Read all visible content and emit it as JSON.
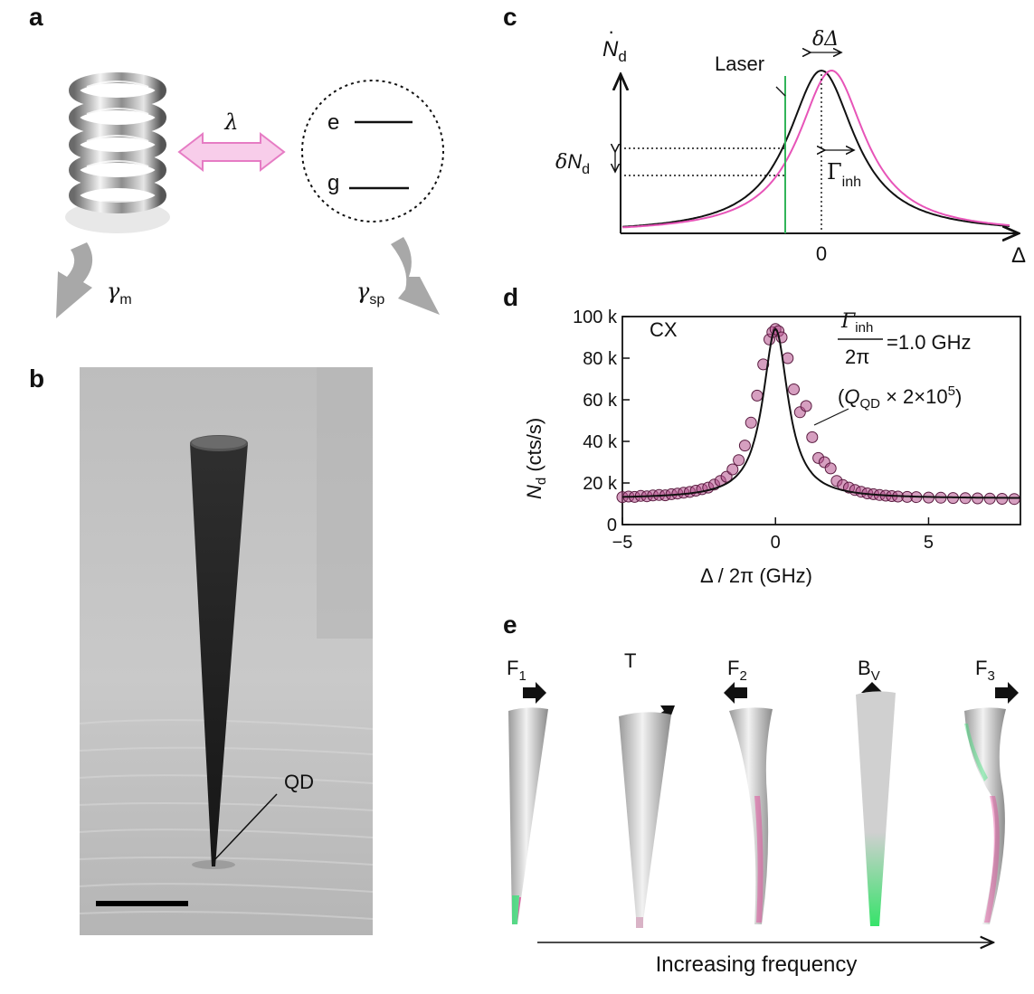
{
  "panels": {
    "a": {
      "label": "a",
      "coupling_symbol": "λ",
      "states": [
        "e",
        "g"
      ],
      "gamma_m_base": "γ",
      "gamma_m_sub": "m",
      "gamma_sp_base": "γ",
      "gamma_sp_sub": "sp"
    },
    "b": {
      "label": "b",
      "qd_label": "QD"
    },
    "c": {
      "label": "c",
      "ylabel": "N",
      "ylabel_sub": "d",
      "laser_label": "Laser",
      "shift_label": "δΔ",
      "dN_prefix": "δ",
      "dN_base": "N",
      "dN_sub": "d",
      "width_base": "Γ",
      "width_sub": "inh",
      "x_zero": "0",
      "x_label": "Δ"
    },
    "d": {
      "label": "d",
      "annotation_cx": "CX",
      "gamma_num_base": "Γ",
      "gamma_num_sub": "inh",
      "gamma_den": "2π",
      "gamma_value": "=1.0 GHz",
      "q_open": "(",
      "q_base": "Q",
      "q_sub": "QD",
      "q_mid": " × 2×10",
      "q_exp": "5",
      "q_close": ")",
      "xlabel": "Δ / 2π (GHz)",
      "ylabel_base": "N",
      "ylabel_sub": "d",
      "ylabel_unit": " (cts/s)"
    },
    "e": {
      "label": "e",
      "modes": [
        {
          "base": "F",
          "sub": "1",
          "arrow": "right"
        },
        {
          "base": "T",
          "sub": "",
          "arrow": "curved"
        },
        {
          "base": "F",
          "sub": "2",
          "arrow": "left"
        },
        {
          "base": "B",
          "sub": "V",
          "arrow": "up"
        },
        {
          "base": "F",
          "sub": "3",
          "arrow": "right"
        }
      ],
      "caption": "Increasing frequency"
    }
  },
  "chart_data": [
    {
      "type": "line",
      "panel": "c",
      "series": [
        {
          "color": "#111111",
          "center": 0,
          "fwhm": 1
        },
        {
          "color": "#e754b8",
          "center": 0.25,
          "fwhm": 1
        }
      ],
      "vline_color": "#32b45a",
      "x_ticks": [
        "0"
      ],
      "xlabel": "Δ",
      "ylabel": "Ṅd"
    },
    {
      "type": "scatter",
      "panel": "d",
      "xlim": [
        -5,
        8
      ],
      "ylim": [
        0,
        100000
      ],
      "x_ticks": [
        -5,
        0,
        5
      ],
      "x_tick_labels": [
        "−5",
        "0",
        "5"
      ],
      "y_ticks": [
        0,
        20000,
        40000,
        60000,
        80000,
        100000
      ],
      "y_tick_labels": [
        "0",
        "20 k",
        "40 k",
        "60 k",
        "80 k",
        "100 k"
      ],
      "fit": {
        "type": "lorentzian",
        "center": 0,
        "fwhm": 1.0,
        "peak": 94000,
        "background": 12500
      },
      "points": [
        [
          -5.0,
          13200
        ],
        [
          -4.8,
          13500
        ],
        [
          -4.6,
          13300
        ],
        [
          -4.4,
          13800
        ],
        [
          -4.2,
          13600
        ],
        [
          -4.0,
          14000
        ],
        [
          -3.8,
          14200
        ],
        [
          -3.6,
          14100
        ],
        [
          -3.4,
          14600
        ],
        [
          -3.2,
          14900
        ],
        [
          -3.0,
          15300
        ],
        [
          -2.8,
          15700
        ],
        [
          -2.6,
          16300
        ],
        [
          -2.4,
          17000
        ],
        [
          -2.2,
          17800
        ],
        [
          -2.0,
          19200
        ],
        [
          -1.8,
          21000
        ],
        [
          -1.6,
          23000
        ],
        [
          -1.4,
          26500
        ],
        [
          -1.2,
          31000
        ],
        [
          -1.0,
          38000
        ],
        [
          -0.8,
          49000
        ],
        [
          -0.6,
          62000
        ],
        [
          -0.4,
          77000
        ],
        [
          -0.2,
          89000
        ],
        [
          -0.1,
          92500
        ],
        [
          0.0,
          94000
        ],
        [
          0.1,
          93000
        ],
        [
          0.2,
          90000
        ],
        [
          0.4,
          80000
        ],
        [
          0.6,
          65000
        ],
        [
          0.8,
          54000
        ],
        [
          1.0,
          57000
        ],
        [
          1.2,
          42000
        ],
        [
          1.4,
          32000
        ],
        [
          1.6,
          30000
        ],
        [
          1.8,
          27000
        ],
        [
          2.0,
          21000
        ],
        [
          2.2,
          19000
        ],
        [
          2.4,
          17800
        ],
        [
          2.6,
          16600
        ],
        [
          2.8,
          15800
        ],
        [
          3.0,
          15000
        ],
        [
          3.2,
          14600
        ],
        [
          3.4,
          14200
        ],
        [
          3.6,
          13900
        ],
        [
          3.8,
          13700
        ],
        [
          4.0,
          13500
        ],
        [
          4.3,
          13300
        ],
        [
          4.6,
          13200
        ],
        [
          5.0,
          13000
        ],
        [
          5.4,
          12900
        ],
        [
          5.8,
          12800
        ],
        [
          6.2,
          12700
        ],
        [
          6.6,
          12600
        ],
        [
          7.0,
          12500
        ],
        [
          7.4,
          12400
        ],
        [
          7.8,
          12300
        ]
      ],
      "marker_color": "#b4508c",
      "xlabel": "Δ / 2π (GHz)",
      "ylabel": "Ṅd (cts/s)"
    }
  ]
}
